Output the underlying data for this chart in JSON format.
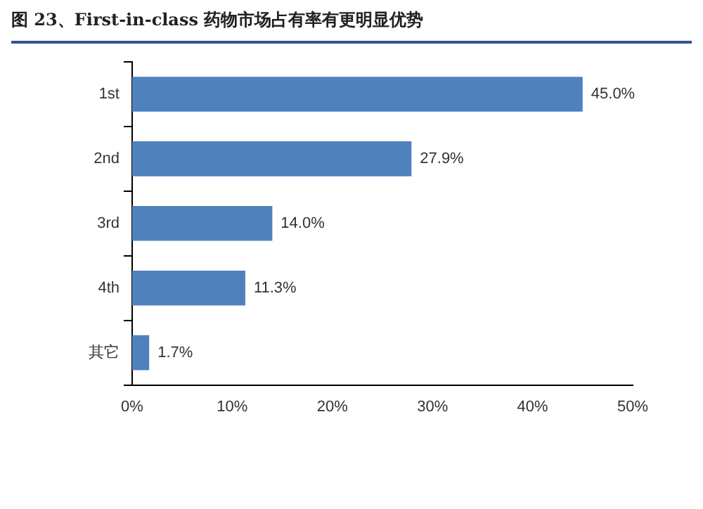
{
  "chart_data": {
    "type": "bar",
    "orientation": "horizontal",
    "title": "图 23、First-in-class 药物市场占有率有更明显优势",
    "categories": [
      "1st",
      "2nd",
      "3rd",
      "4th",
      "其它"
    ],
    "values": [
      45.0,
      27.9,
      14.0,
      11.3,
      1.7
    ],
    "value_labels": [
      "45.0%",
      "27.9%",
      "14.0%",
      "11.3%",
      "1.7%"
    ],
    "color": "#4f81bd",
    "xlim": [
      0,
      50
    ],
    "xticks": [
      {
        "value": 0,
        "label": "0%"
      },
      {
        "value": 10,
        "label": "10%"
      },
      {
        "value": 20,
        "label": "20%"
      },
      {
        "value": 30,
        "label": "30%"
      },
      {
        "value": 40,
        "label": "40%"
      },
      {
        "value": 50,
        "label": "50%"
      }
    ],
    "grid": false,
    "legend": false
  }
}
